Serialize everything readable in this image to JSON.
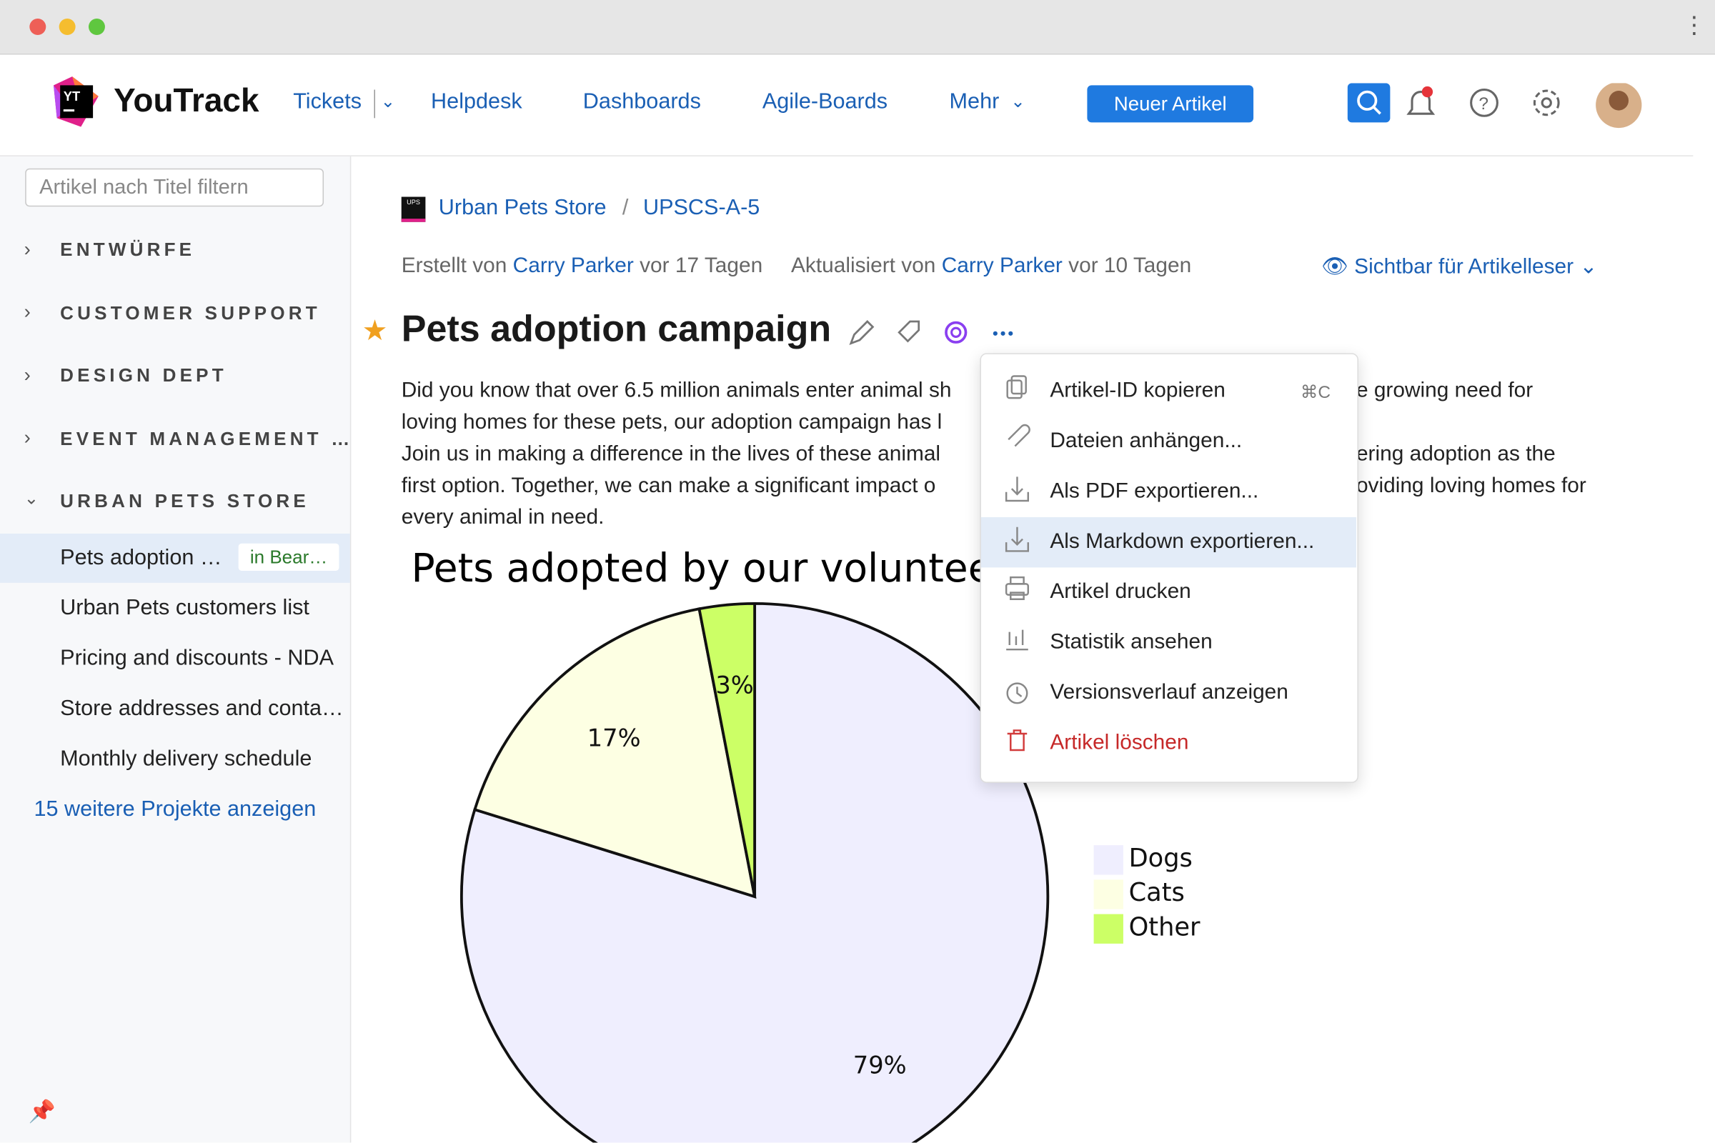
{
  "header": {
    "logo_badge": "YT",
    "logo": "YouTrack",
    "nav": [
      "Tickets",
      "Helpdesk",
      "Dashboards",
      "Agile-Boards",
      "Mehr"
    ],
    "new_button": "Neuer Artikel"
  },
  "sidebar": {
    "filter_placeholder": "Artikel nach Titel filtern",
    "groups": [
      "ENTWÜRFE",
      "CUSTOMER SUPPORT",
      "DESIGN DEPT",
      "EVENT MANAGEMENT …",
      "URBAN PETS STORE"
    ],
    "active_article": {
      "title": "Pets adoption …",
      "badge": "in Bear…"
    },
    "articles": [
      "Urban Pets customers list",
      "Pricing and discounts - NDA",
      "Store addresses and conta…",
      "Monthly delivery schedule"
    ],
    "more": "15 weitere Projekte anzeigen"
  },
  "breadcrumb": {
    "project_badge": "UPS",
    "project": "Urban Pets Store",
    "id": "UPSCS-A-5"
  },
  "meta": {
    "created_prefix": "Erstellt von",
    "created_by": "Carry Parker",
    "created_ago": "vor 17 Tagen",
    "updated_prefix": "Aktualisiert von",
    "updated_by": "Carry Parker",
    "updated_ago": "vor 10 Tagen",
    "visibility": "Sichtbar für Artikelleser"
  },
  "article": {
    "title": "Pets adoption campaign",
    "paragraph_left": [
      "Did you know that over 6.5 million animals enter animal sh",
      "loving homes for these pets, our adoption campaign has l",
      "Join us in making a difference in the lives of these animal",
      "first option. Together, we can make a significant impact o",
      "every animal in need."
    ],
    "paragraph_right": [
      "e growing need for",
      "ering adoption as the",
      "oviding loving homes for"
    ]
  },
  "chart_data": {
    "type": "pie",
    "title": "Pets adopted by our volunteers i",
    "categories": [
      "Dogs",
      "Cats",
      "Other"
    ],
    "values": [
      79,
      17,
      3
    ],
    "value_labels": [
      "79%",
      "17%",
      "3%"
    ],
    "colors": [
      "#efeefe",
      "#fdffe3",
      "#ccff66"
    ]
  },
  "menu": {
    "items": [
      {
        "label": "Artikel-ID kopieren",
        "shortcut": "⌘C"
      },
      {
        "label": "Dateien anhängen..."
      },
      {
        "label": "Als PDF exportieren..."
      },
      {
        "label": "Als Markdown exportieren..."
      },
      {
        "label": "Artikel drucken"
      },
      {
        "label": "Statistik ansehen"
      },
      {
        "label": "Versionsverlauf anzeigen"
      },
      {
        "label": "Artikel löschen"
      }
    ]
  }
}
